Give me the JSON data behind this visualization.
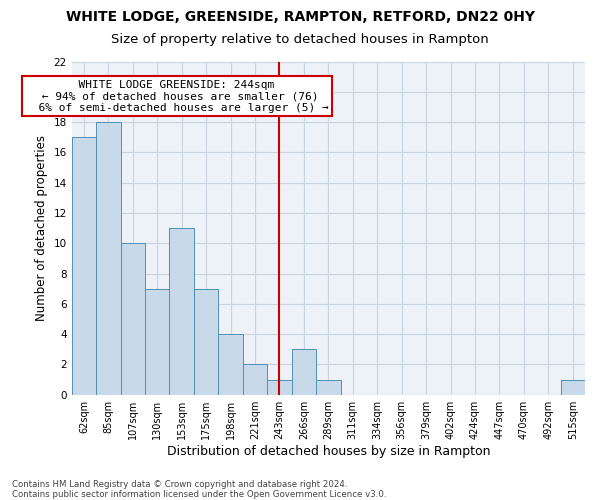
{
  "title": "WHITE LODGE, GREENSIDE, RAMPTON, RETFORD, DN22 0HY",
  "subtitle": "Size of property relative to detached houses in Rampton",
  "xlabel": "Distribution of detached houses by size in Rampton",
  "ylabel": "Number of detached properties",
  "categories": [
    "62sqm",
    "85sqm",
    "107sqm",
    "130sqm",
    "153sqm",
    "175sqm",
    "198sqm",
    "221sqm",
    "243sqm",
    "266sqm",
    "289sqm",
    "311sqm",
    "334sqm",
    "356sqm",
    "379sqm",
    "402sqm",
    "424sqm",
    "447sqm",
    "470sqm",
    "492sqm",
    "515sqm"
  ],
  "values": [
    17,
    18,
    10,
    7,
    11,
    7,
    4,
    2,
    1,
    3,
    1,
    0,
    0,
    0,
    0,
    0,
    0,
    0,
    0,
    0,
    1
  ],
  "bar_color": "#c8d9ea",
  "bar_edge_color": "#5090b8",
  "vline_x_index": 8,
  "vline_color": "#cc0000",
  "annotation_text": "  WHITE LODGE GREENSIDE: 244sqm  \n ← 94% of detached houses are smaller (76)\n  6% of semi-detached houses are larger (5) →",
  "annotation_box_color": "#ffffff",
  "annotation_box_edge": "#cc0000",
  "ylim": [
    0,
    22
  ],
  "yticks": [
    0,
    2,
    4,
    6,
    8,
    10,
    12,
    14,
    16,
    18,
    20,
    22
  ],
  "footer1": "Contains HM Land Registry data © Crown copyright and database right 2024.",
  "footer2": "Contains public sector information licensed under the Open Government Licence v3.0.",
  "grid_color": "#c8d4e0",
  "background_color": "#edf1f8",
  "title_fontsize": 10,
  "subtitle_fontsize": 9.5,
  "tick_fontsize": 7,
  "ylabel_fontsize": 8.5,
  "xlabel_fontsize": 9,
  "annotation_fontsize": 8,
  "footer_fontsize": 6.2
}
